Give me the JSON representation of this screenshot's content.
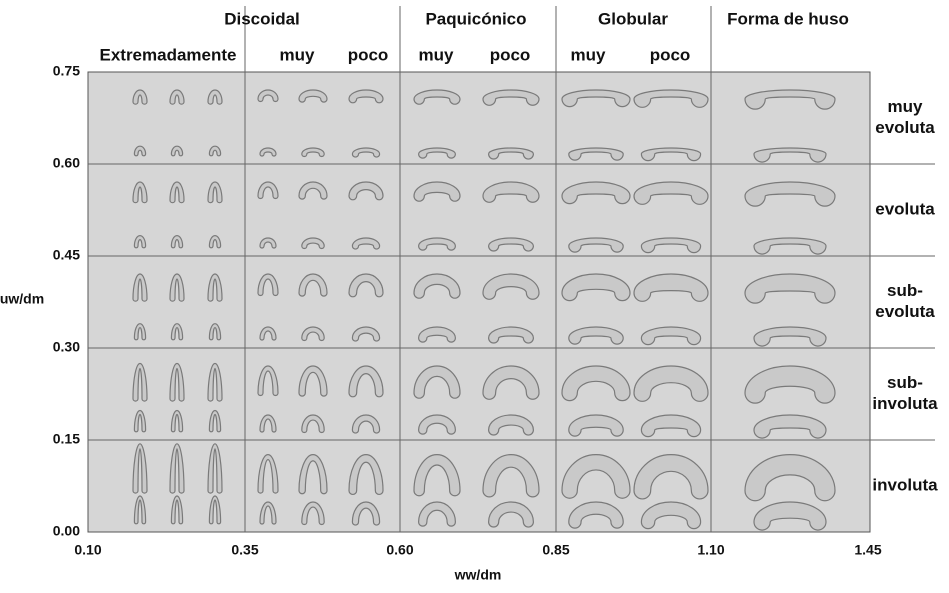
{
  "header": {
    "groups": [
      "Discoidal",
      "Paquicónico",
      "Globular",
      "Forma de huso"
    ],
    "sublabels": [
      "Extremadamente",
      "muy",
      "poco",
      "muy",
      "poco",
      "muy",
      "poco"
    ]
  },
  "y_axis": {
    "title": "uw/dm",
    "ticks": [
      "0.75",
      "0.60",
      "0.45",
      "0.30",
      "0.15",
      "0.00"
    ]
  },
  "x_axis": {
    "title": "ww/dm",
    "ticks": [
      "0.10",
      "0.35",
      "0.60",
      "0.85",
      "1.10",
      "1.45"
    ]
  },
  "rows": [
    [
      "muy",
      "evoluta"
    ],
    [
      "evoluta"
    ],
    [
      "sub-",
      "evoluta"
    ],
    [
      "sub-",
      "involuta"
    ],
    [
      "involuta"
    ]
  ]
}
